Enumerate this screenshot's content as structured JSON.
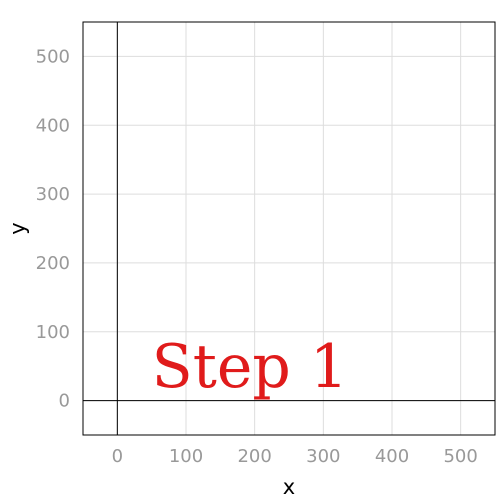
{
  "chart_data": {
    "type": "scatter",
    "xlabel": "x",
    "ylabel": "y",
    "xlim": [
      -50,
      550
    ],
    "ylim": [
      -50,
      550
    ],
    "xticks": [
      0,
      100,
      200,
      300,
      400,
      500
    ],
    "yticks": [
      0,
      100,
      200,
      300,
      400,
      500
    ],
    "grid": true,
    "series": [],
    "annotations": [
      {
        "text": "Step 1",
        "x": 50,
        "y": 20,
        "color": "#e01b1b"
      }
    ]
  },
  "colors": {
    "grid": "#dddddd",
    "axis_line": "#000000",
    "frame": "#000000",
    "tick_label": "#999999"
  }
}
